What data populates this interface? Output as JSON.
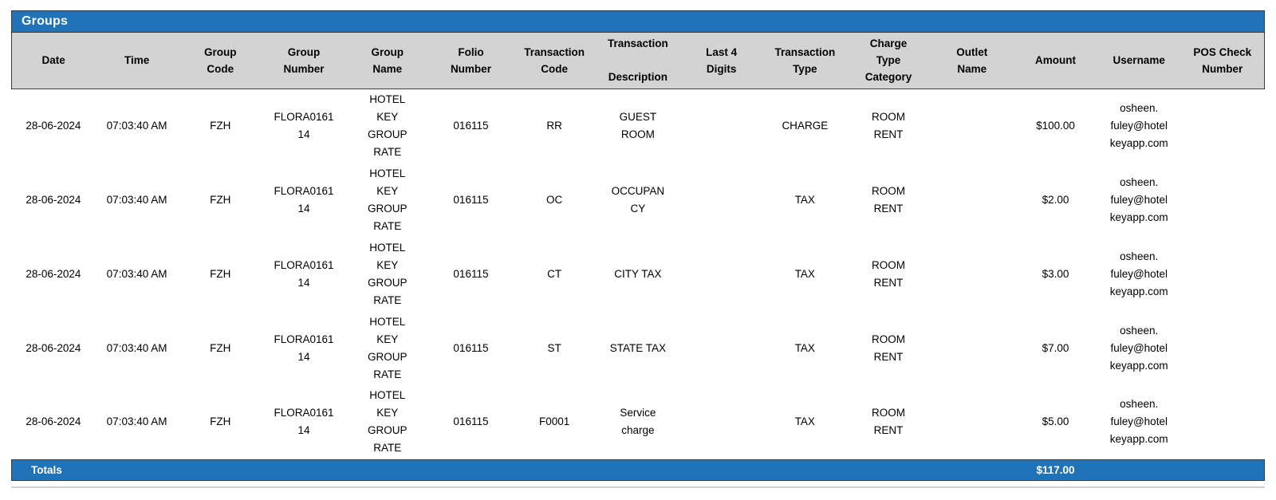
{
  "title": "Groups",
  "colors": {
    "bar_blue": "#2173B8",
    "header_gray": "#D3D3D3",
    "border_dark": "#383C40",
    "bottom_rule_gray": "#D0D0D0"
  },
  "table": {
    "columns": [
      {
        "key": "date",
        "label": "Date"
      },
      {
        "key": "time",
        "label": "Time"
      },
      {
        "key": "group_code",
        "label": "Group\nCode"
      },
      {
        "key": "group_number",
        "label": "Group\nNumber"
      },
      {
        "key": "group_name",
        "label": "Group\nName"
      },
      {
        "key": "folio_number",
        "label": "Folio\nNumber"
      },
      {
        "key": "transaction_code",
        "label": "Transaction\nCode"
      },
      {
        "key": "transaction_description",
        "label": "Transaction\n\nDescription"
      },
      {
        "key": "last_4_digits",
        "label": "Last 4\nDigits"
      },
      {
        "key": "transaction_type",
        "label": "Transaction\nType"
      },
      {
        "key": "charge_type_category",
        "label": "Charge\nType\nCategory"
      },
      {
        "key": "outlet_name",
        "label": "Outlet\nName"
      },
      {
        "key": "amount",
        "label": "Amount"
      },
      {
        "key": "username",
        "label": "Username"
      },
      {
        "key": "pos_check_number",
        "label": "POS Check\nNumber"
      }
    ],
    "rows": [
      {
        "date": "28-06-2024",
        "time": "07:03:40 AM",
        "group_code": "FZH",
        "group_number": "FLORA0161\n14",
        "group_name": "HOTEL\nKEY\nGROUP\nRATE",
        "folio_number": "016115",
        "transaction_code": "RR",
        "transaction_description": "GUEST\nROOM",
        "last_4_digits": "",
        "transaction_type": "CHARGE",
        "charge_type_category": "ROOM\nRENT",
        "outlet_name": "",
        "amount": "$100.00",
        "username": "osheen.\nfuley@hotel\nkeyapp.com",
        "pos_check_number": ""
      },
      {
        "date": "28-06-2024",
        "time": "07:03:40 AM",
        "group_code": "FZH",
        "group_number": "FLORA0161\n14",
        "group_name": "HOTEL\nKEY\nGROUP\nRATE",
        "folio_number": "016115",
        "transaction_code": "OC",
        "transaction_description": "OCCUPAN\nCY",
        "last_4_digits": "",
        "transaction_type": "TAX",
        "charge_type_category": "ROOM\nRENT",
        "outlet_name": "",
        "amount": "$2.00",
        "username": "osheen.\nfuley@hotel\nkeyapp.com",
        "pos_check_number": ""
      },
      {
        "date": "28-06-2024",
        "time": "07:03:40 AM",
        "group_code": "FZH",
        "group_number": "FLORA0161\n14",
        "group_name": "HOTEL\nKEY\nGROUP\nRATE",
        "folio_number": "016115",
        "transaction_code": "CT",
        "transaction_description": "CITY TAX",
        "last_4_digits": "",
        "transaction_type": "TAX",
        "charge_type_category": "ROOM\nRENT",
        "outlet_name": "",
        "amount": "$3.00",
        "username": "osheen.\nfuley@hotel\nkeyapp.com",
        "pos_check_number": ""
      },
      {
        "date": "28-06-2024",
        "time": "07:03:40 AM",
        "group_code": "FZH",
        "group_number": "FLORA0161\n14",
        "group_name": "HOTEL\nKEY\nGROUP\nRATE",
        "folio_number": "016115",
        "transaction_code": "ST",
        "transaction_description": "STATE TAX",
        "last_4_digits": "",
        "transaction_type": "TAX",
        "charge_type_category": "ROOM\nRENT",
        "outlet_name": "",
        "amount": "$7.00",
        "username": "osheen.\nfuley@hotel\nkeyapp.com",
        "pos_check_number": ""
      },
      {
        "date": "28-06-2024",
        "time": "07:03:40 AM",
        "group_code": "FZH",
        "group_number": "FLORA0161\n14",
        "group_name": "HOTEL\nKEY\nGROUP\nRATE",
        "folio_number": "016115",
        "transaction_code": "F0001",
        "transaction_description": "Service\ncharge",
        "last_4_digits": "",
        "transaction_type": "TAX",
        "charge_type_category": "ROOM\nRENT",
        "outlet_name": "",
        "amount": "$5.00",
        "username": "osheen.\nfuley@hotel\nkeyapp.com",
        "pos_check_number": ""
      }
    ]
  },
  "totals": {
    "label": "Totals",
    "amount": "$117.00"
  }
}
